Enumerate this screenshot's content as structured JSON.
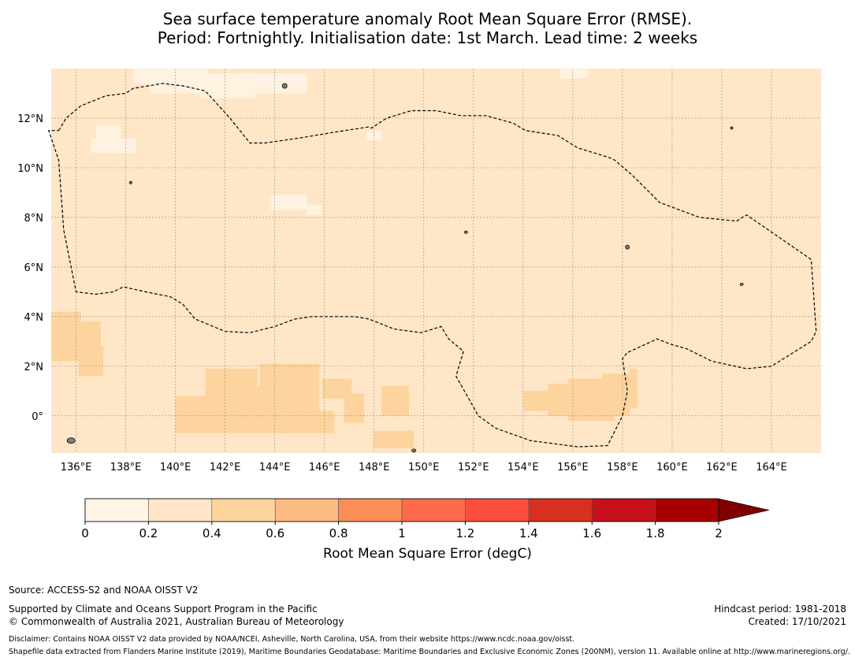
{
  "title": {
    "line1": "Sea surface temperature anomaly Root Mean Square Error (RMSE).",
    "line2": "Period: Fortnightly. Initialisation date: 1st March. Lead time: 2 weeks"
  },
  "map": {
    "lon_range": [
      135,
      166
    ],
    "lat_range": [
      -1.5,
      14
    ],
    "lon_ticks": [
      "136°E",
      "138°E",
      "140°E",
      "142°E",
      "144°E",
      "146°E",
      "148°E",
      "150°E",
      "152°E",
      "154°E",
      "156°E",
      "158°E",
      "160°E",
      "162°E",
      "164°E"
    ],
    "lon_values": [
      136,
      138,
      140,
      142,
      144,
      146,
      148,
      150,
      152,
      154,
      156,
      158,
      160,
      162,
      164
    ],
    "lat_ticks": [
      "12°N",
      "10°N",
      "8°N",
      "6°N",
      "4°N",
      "2°N",
      "0°"
    ],
    "lat_values": [
      12,
      10,
      8,
      6,
      4,
      2,
      0
    ],
    "background_color": "#fee6c7",
    "low_color": "#fff2e0",
    "mid_color": "#fdd49e",
    "eez_boundary": [
      [
        135.3,
        11.5
      ],
      [
        135.6,
        12.0
      ],
      [
        136.2,
        12.5
      ],
      [
        137.2,
        12.9
      ],
      [
        138.0,
        13.0
      ],
      [
        138.3,
        13.2
      ],
      [
        139.5,
        13.4
      ],
      [
        140.3,
        13.3
      ],
      [
        141.2,
        13.1
      ],
      [
        142.2,
        12.0
      ],
      [
        143.0,
        11.0
      ],
      [
        143.6,
        11.0
      ],
      [
        145.0,
        11.2
      ],
      [
        146.5,
        11.45
      ],
      [
        147.8,
        11.65
      ],
      [
        147.9,
        11.6
      ],
      [
        148.5,
        12.0
      ],
      [
        149.5,
        12.3
      ],
      [
        150.5,
        12.3
      ],
      [
        151.5,
        12.1
      ],
      [
        152.5,
        12.1
      ],
      [
        153.6,
        11.8
      ],
      [
        154.1,
        11.5
      ],
      [
        155.4,
        11.3
      ],
      [
        156.2,
        10.8
      ],
      [
        157.5,
        10.4
      ],
      [
        157.7,
        10.3
      ],
      [
        158.4,
        9.7
      ],
      [
        159.5,
        8.6
      ],
      [
        161.1,
        8.0
      ],
      [
        162.6,
        7.85
      ],
      [
        163.0,
        8.1
      ],
      [
        165.6,
        6.3
      ],
      [
        165.8,
        3.4
      ],
      [
        165.6,
        3.0
      ],
      [
        164.0,
        2.0
      ],
      [
        163.0,
        1.9
      ],
      [
        161.6,
        2.2
      ],
      [
        160.6,
        2.7
      ],
      [
        159.9,
        2.9
      ],
      [
        159.4,
        3.1
      ],
      [
        158.2,
        2.55
      ],
      [
        158.0,
        2.3
      ],
      [
        158.2,
        1.0
      ],
      [
        158.0,
        0.0
      ],
      [
        157.4,
        -1.2
      ],
      [
        156.2,
        -1.25
      ],
      [
        154.3,
        -1.0
      ],
      [
        152.9,
        -0.5
      ],
      [
        152.2,
        0.0
      ],
      [
        151.3,
        1.6
      ],
      [
        151.6,
        2.6
      ],
      [
        151.0,
        3.1
      ],
      [
        150.7,
        3.6
      ],
      [
        149.9,
        3.35
      ],
      [
        148.8,
        3.5
      ],
      [
        147.8,
        3.9
      ],
      [
        147.2,
        4.0
      ],
      [
        146.2,
        4.0
      ],
      [
        145.5,
        4.0
      ],
      [
        144.8,
        3.9
      ],
      [
        144.0,
        3.6
      ],
      [
        143.0,
        3.35
      ],
      [
        142.0,
        3.4
      ],
      [
        140.8,
        3.9
      ],
      [
        140.3,
        4.5
      ],
      [
        139.8,
        4.8
      ],
      [
        138.8,
        5.0
      ],
      [
        137.9,
        5.2
      ],
      [
        137.5,
        5.0
      ],
      [
        136.8,
        4.9
      ],
      [
        136.0,
        5.0
      ],
      [
        135.5,
        7.5
      ],
      [
        135.3,
        10.3
      ],
      [
        134.9,
        11.5
      ]
    ],
    "light_patches": [
      [
        138.3,
        14.0,
        141.3,
        13.4
      ],
      [
        139.0,
        13.5,
        141.8,
        13.0
      ],
      [
        141.0,
        13.8,
        143.2,
        12.8
      ],
      [
        142.8,
        13.8,
        145.3,
        13.0
      ],
      [
        136.6,
        11.2,
        138.4,
        10.6
      ],
      [
        136.8,
        11.7,
        137.8,
        11.2
      ],
      [
        143.8,
        8.9,
        145.3,
        8.3
      ],
      [
        145.3,
        8.5,
        145.9,
        8.1
      ],
      [
        147.7,
        11.5,
        148.3,
        11.1
      ],
      [
        155.5,
        14.0,
        156.6,
        13.6
      ]
    ],
    "mid_patches": [
      [
        135.0,
        4.2,
        136.2,
        2.2
      ],
      [
        135.8,
        3.8,
        137.0,
        2.8
      ],
      [
        136.1,
        2.8,
        137.1,
        1.6
      ],
      [
        140.0,
        0.8,
        142.2,
        -0.7
      ],
      [
        141.2,
        1.9,
        143.3,
        0.5
      ],
      [
        142.2,
        1.2,
        144.6,
        -0.7
      ],
      [
        143.4,
        2.1,
        145.8,
        -0.7
      ],
      [
        144.2,
        0.2,
        146.4,
        -0.7
      ],
      [
        145.9,
        1.5,
        147.1,
        0.7
      ],
      [
        146.8,
        0.9,
        147.6,
        -0.3
      ],
      [
        148.3,
        1.2,
        149.4,
        0.0
      ],
      [
        148.0,
        -0.6,
        149.6,
        -1.3
      ],
      [
        154.0,
        1.0,
        155.3,
        0.2
      ],
      [
        155.0,
        1.3,
        156.6,
        0.0
      ],
      [
        155.8,
        1.5,
        157.7,
        -0.2
      ],
      [
        157.2,
        1.7,
        158.3,
        0.0
      ],
      [
        158.3,
        1.9,
        158.6,
        0.3
      ]
    ]
  },
  "colorbar": {
    "colors": [
      "#fff5e6",
      "#fee6c7",
      "#fdd49e",
      "#fdbb84",
      "#fc8d59",
      "#fd6b4c",
      "#fc4e3c",
      "#d7301f",
      "#c8101a",
      "#a80000"
    ],
    "extend_color": "#7f0000",
    "ticks": [
      "0",
      "0.2",
      "0.4",
      "0.6",
      "0.8",
      "1",
      "1.2",
      "1.4",
      "1.6",
      "1.8",
      "2"
    ],
    "label": "Root Mean Square Error (degC)"
  },
  "footer": {
    "source": "Source: ACCESS-S2 and NOAA OISST V2",
    "supported": "Supported by Climate and Oceans Support Program in the Pacific",
    "copyright": "© Commonwealth of Australia 2021, Australian Bureau of Meteorology",
    "hindcast": "Hindcast period: 1981-2018",
    "created": "Created: 17/10/2021",
    "disclaimer": "Disclaimer: Contains NOAA OISST V2 data provided by NOAA/NCEI, Asheville, North Carolina, USA, from their website https://www.ncdc.noaa.gov/oisst.",
    "shapefile": "Shapefile data extracted from Flanders Marine Institute (2019), Maritime Boundaries Geodatabase: Maritime Boundaries and Exclusive Economic Zones (200NM), version 11. Available online at http://www.marineregions.org/."
  }
}
